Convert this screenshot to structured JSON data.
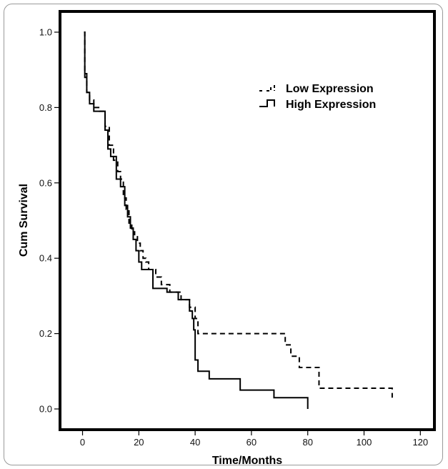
{
  "chart_data": {
    "type": "line",
    "step": true,
    "xlabel": "Time/Months",
    "ylabel": "Cum Survival",
    "xlim": [
      -8,
      125
    ],
    "ylim": [
      -0.055,
      1.055
    ],
    "xticks": [
      0,
      20,
      40,
      60,
      80,
      100,
      120
    ],
    "yticks": [
      0.0,
      0.2,
      0.4,
      0.6,
      0.8,
      1.0
    ],
    "xtick_labels": [
      "0",
      "20",
      "40",
      "60",
      "80",
      "100",
      "120"
    ],
    "ytick_labels": [
      "0.0",
      "0.2",
      "0.4",
      "0.6",
      "0.8",
      "1.0"
    ],
    "grid": false,
    "legend_position": "top-right",
    "series": [
      {
        "name": "Low Expression",
        "line_style": "dashed",
        "color": "#000000",
        "x": [
          0.5,
          0.8,
          1.5,
          2.5,
          4,
          6,
          8,
          9.5,
          11,
          12.5,
          13.5,
          14.5,
          15.5,
          16.5,
          17.5,
          18.5,
          19.5,
          20.5,
          21.5,
          22.5,
          23.5,
          26,
          28,
          31,
          35,
          38,
          40,
          41,
          72,
          74,
          77,
          80,
          84,
          110
        ],
        "y": [
          1.0,
          0.89,
          0.84,
          0.82,
          0.8,
          0.79,
          0.75,
          0.7,
          0.66,
          0.63,
          0.61,
          0.56,
          0.53,
          0.49,
          0.47,
          0.46,
          0.44,
          0.42,
          0.4,
          0.39,
          0.37,
          0.35,
          0.33,
          0.31,
          0.29,
          0.27,
          0.24,
          0.2,
          0.17,
          0.14,
          0.11,
          0.11,
          0.055,
          0.03
        ]
      },
      {
        "name": "High Expression",
        "line_style": "solid",
        "color": "#000000",
        "x": [
          0.5,
          0.8,
          1.5,
          2.5,
          4,
          8,
          9,
          10,
          12,
          13.5,
          15,
          16,
          17,
          18,
          19,
          20,
          21,
          22,
          25,
          26,
          30,
          34,
          38,
          39,
          39.5,
          40,
          41,
          43,
          45,
          56,
          68,
          80
        ],
        "y": [
          1.0,
          0.88,
          0.84,
          0.81,
          0.79,
          0.74,
          0.69,
          0.67,
          0.61,
          0.59,
          0.54,
          0.51,
          0.48,
          0.45,
          0.42,
          0.39,
          0.37,
          0.37,
          0.32,
          0.32,
          0.31,
          0.29,
          0.26,
          0.24,
          0.21,
          0.13,
          0.1,
          0.1,
          0.08,
          0.05,
          0.03,
          0.0
        ]
      }
    ]
  }
}
